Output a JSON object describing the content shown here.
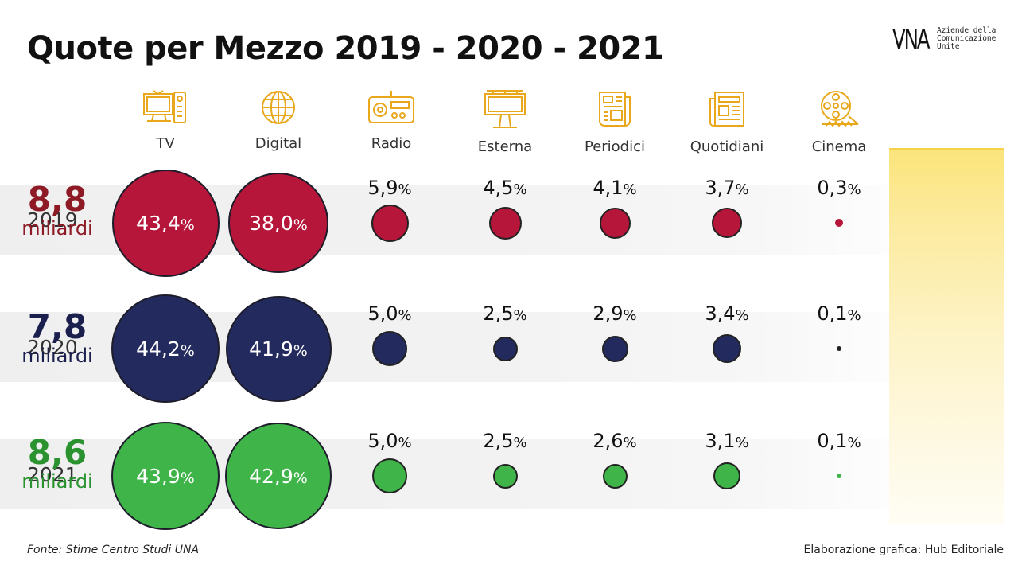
{
  "title": "Quote per Mezzo 2019 - 2020 - 2021",
  "logo": {
    "mark": "VNA",
    "line1": "Aziende della",
    "line2": "Comunicazione",
    "line3": "Unite"
  },
  "colors": {
    "2019": "#b5163a",
    "2020": "#232a5e",
    "2021": "#3fb449",
    "icon": "#e9a81c",
    "total_2019": "#8e1a25",
    "total_2020": "#1a1f4e",
    "total_2021": "#2b9230"
  },
  "icons": [
    "tv-icon",
    "globe-icon",
    "radio-icon",
    "billboard-icon",
    "magazine-icon",
    "newspaper-icon",
    "film-reel-icon"
  ],
  "chart_data": {
    "type": "bubble",
    "title": "Quote per Mezzo 2019 - 2020 - 2021",
    "categories": [
      "TV",
      "Digital",
      "Radio",
      "Esterna",
      "Periodici",
      "Quotidiani",
      "Cinema"
    ],
    "unit": "%",
    "series": [
      {
        "name": "2019",
        "values": [
          43.4,
          38.0,
          5.9,
          4.5,
          4.1,
          3.7,
          0.3
        ],
        "labels": [
          "43,4",
          "38,0",
          "5,9",
          "4,5",
          "4,1",
          "3,7",
          "0,3"
        ],
        "total": "8,8",
        "total_unit": "miliardi"
      },
      {
        "name": "2020",
        "values": [
          44.2,
          41.9,
          5.0,
          2.5,
          2.9,
          3.4,
          0.1
        ],
        "labels": [
          "44,2",
          "41,9",
          "5,0",
          "2,5",
          "2,9",
          "3,4",
          "0,1"
        ],
        "total": "7,8",
        "total_unit": "miliardi"
      },
      {
        "name": "2021",
        "values": [
          43.9,
          42.9,
          5.0,
          2.5,
          2.6,
          3.1,
          0.1
        ],
        "labels": [
          "43,9",
          "42,9",
          "5,0",
          "2,5",
          "2,6",
          "3,1",
          "0,1"
        ],
        "total": "8,6",
        "total_unit": "miliardi"
      }
    ]
  },
  "footer": {
    "source": "Fonte: Stime Centro Studi UNA",
    "credit": "Elaborazione grafica: Hub Editoriale"
  }
}
